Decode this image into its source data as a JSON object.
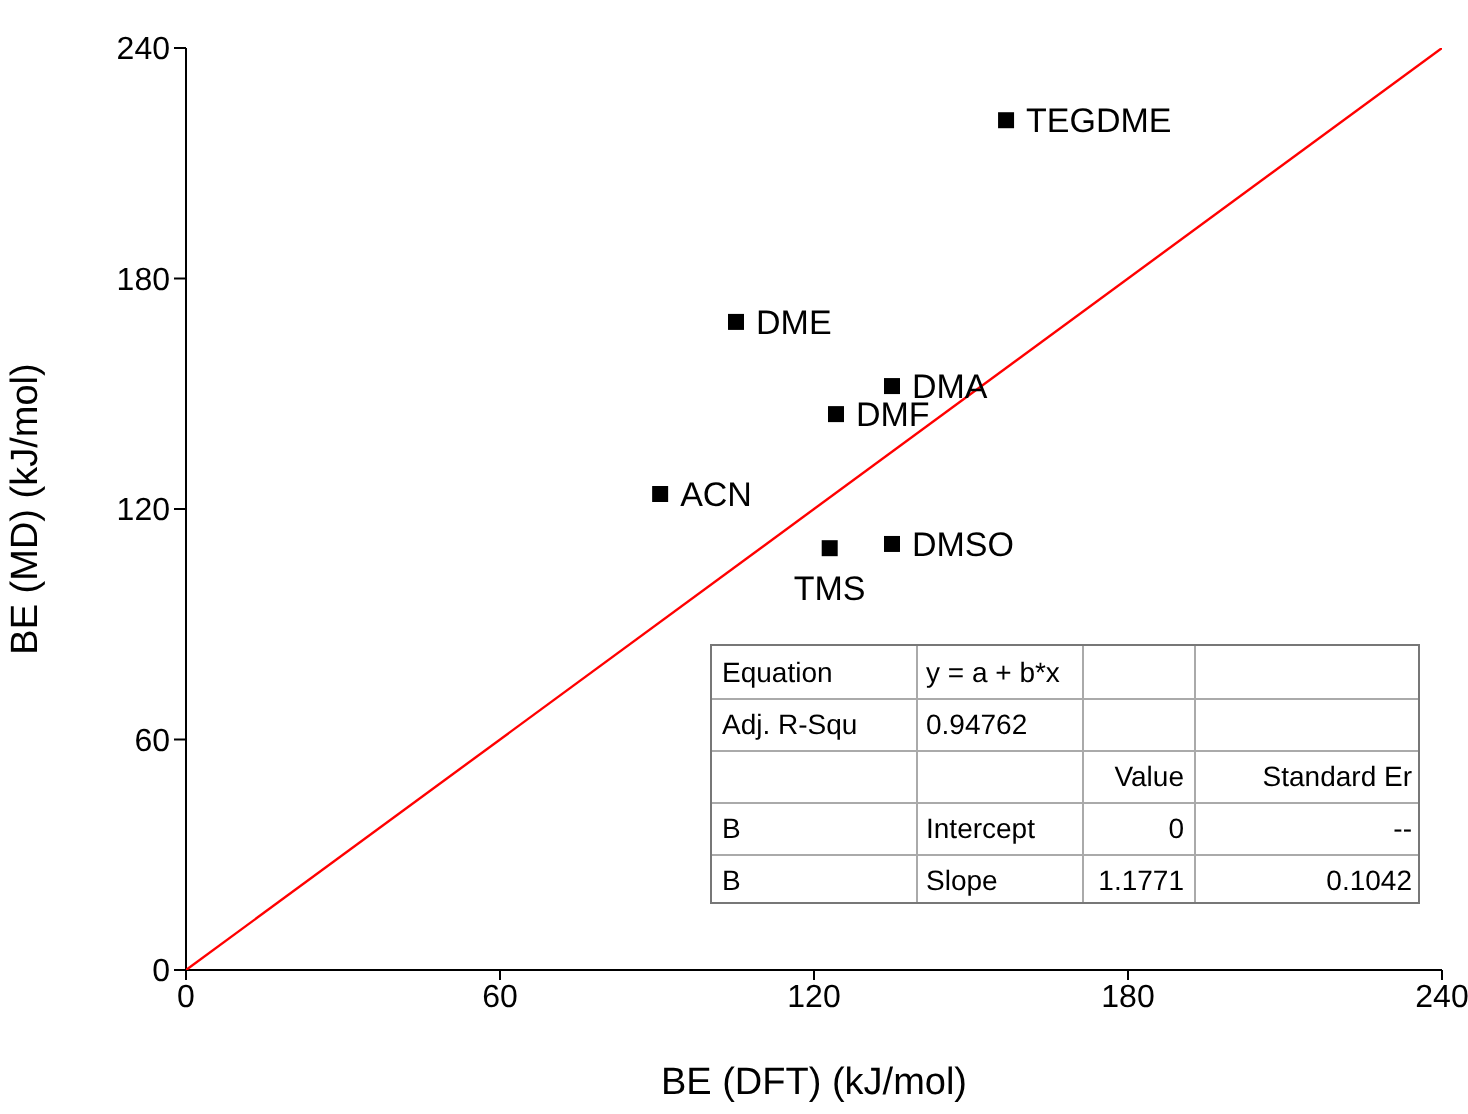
{
  "chart_data": {
    "type": "scatter",
    "xlabel": "BE (DFT) (kJ/mol)",
    "ylabel": "BE (MD) (kJ/mol)",
    "xlim": [
      0,
      240
    ],
    "ylim": [
      0,
      240
    ],
    "xticks": [
      0,
      60,
      120,
      180,
      240
    ],
    "yticks": [
      0,
      60,
      120,
      180,
      240
    ],
    "marker": "square",
    "series": [
      {
        "type": "scatter",
        "color": "#000000",
        "x": [
          156.7,
          105.1,
          134.9,
          124.2,
          90.6,
          123,
          134.9
        ],
        "values": [
          221.2,
          168.7,
          152,
          144.7,
          123.9,
          109.8,
          110.9
        ]
      },
      {
        "type": "line",
        "color": "#ff0000",
        "marker": "none",
        "x": [
          0,
          240
        ],
        "values": [
          0,
          240
        ]
      }
    ],
    "annotations": [
      {
        "text": "TEGDME",
        "x": 156.7,
        "y": 221.2
      },
      {
        "text": "DME",
        "x": 105.1,
        "y": 168.7
      },
      {
        "text": "DMA",
        "x": 134.9,
        "y": 152
      },
      {
        "text": "DMF",
        "x": 124.2,
        "y": 144.7
      },
      {
        "text": "ACN",
        "x": 90.6,
        "y": 123.9
      },
      {
        "text": "TMS",
        "x": 123,
        "y": 109.8
      },
      {
        "text": "DMSO",
        "x": 134.9,
        "y": 110.9
      },
      "Equation",
      "y = a + b*x",
      "Adj. R-Squ",
      "0.94762",
      "Value",
      "Standard Er",
      "B",
      "Intercept",
      "0",
      "--",
      "B",
      "Slope",
      "1.1771",
      "0.1042"
    ]
  }
}
